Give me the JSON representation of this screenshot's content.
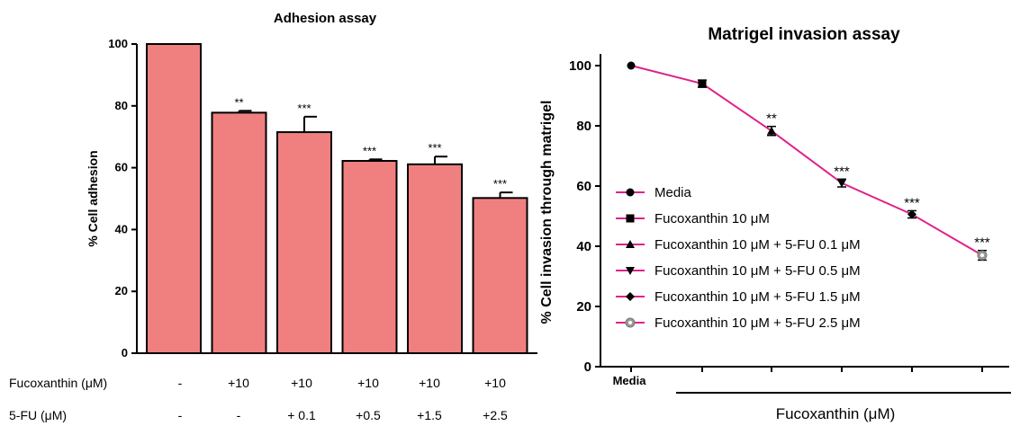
{
  "chart_data": [
    {
      "type": "bar",
      "title": "Adhesion assay",
      "ylabel": "% Cell adhesion",
      "ylim": [
        0,
        100
      ],
      "yticks": [
        "0",
        "20",
        "40",
        "60",
        "80",
        "100"
      ],
      "bar_color": "#f08080",
      "categories": [
        "Media",
        "Fucoxanthin 10",
        "Fucoxanthin 10 + 5-FU 0.1",
        "Fucoxanthin 10 + 5-FU 0.5",
        "Fucoxanthin 10 + 5-FU 1.5",
        "Fucoxanthin 10 + 5-FU 2.5"
      ],
      "values": [
        100,
        77.8,
        71.5,
        62.2,
        61.1,
        50.2
      ],
      "errors": [
        0,
        0.6,
        5.0,
        0.5,
        2.5,
        1.8
      ],
      "significance": [
        "",
        "**",
        "***",
        "***",
        "***",
        "***"
      ],
      "row_labels": [
        {
          "label": "Fucoxanthin (μM)",
          "values": [
            "-",
            "+10",
            "+10",
            "+10",
            "+10",
            "+10"
          ]
        },
        {
          "label": "5-FU (μM)",
          "values": [
            "-",
            "-",
            "+ 0.1",
            "+0.5",
            "+1.5",
            "+2.5"
          ]
        }
      ]
    },
    {
      "type": "line",
      "title": "Matrigel invasion assay",
      "ylabel": "% Cell invasion through matrigel",
      "xlabel": "Fucoxanthin (μM)",
      "x_first_label": "Media",
      "ylim": [
        0,
        110
      ],
      "yticks": [
        "0",
        "20",
        "40",
        "60",
        "80",
        "100"
      ],
      "line_color": "#e0218a",
      "series": [
        {
          "name": "Media",
          "value": 100,
          "error": 0,
          "marker": "circle",
          "significance": ""
        },
        {
          "name": "Fucoxanthin 10 μM",
          "value": 94,
          "error": 1.2,
          "marker": "square",
          "significance": ""
        },
        {
          "name": "Fucoxanthin 10 μM + 5-FU 0.1 μM",
          "value": 78.3,
          "error": 1.5,
          "marker": "triangle-up",
          "significance": "**"
        },
        {
          "name": "Fucoxanthin 10 μM + 5-FU 0.5 μM",
          "value": 61,
          "error": 1.3,
          "marker": "triangle-down",
          "significance": "***"
        },
        {
          "name": "Fucoxanthin 10 μM + 5-FU 1.5 μM",
          "value": 50.6,
          "error": 1.2,
          "marker": "diamond",
          "significance": "***"
        },
        {
          "name": "Fucoxanthin 10 μM + 5-FU 2.5 μM",
          "value": 37,
          "error": 1.6,
          "marker": "circle-gray",
          "significance": "***"
        }
      ]
    }
  ]
}
